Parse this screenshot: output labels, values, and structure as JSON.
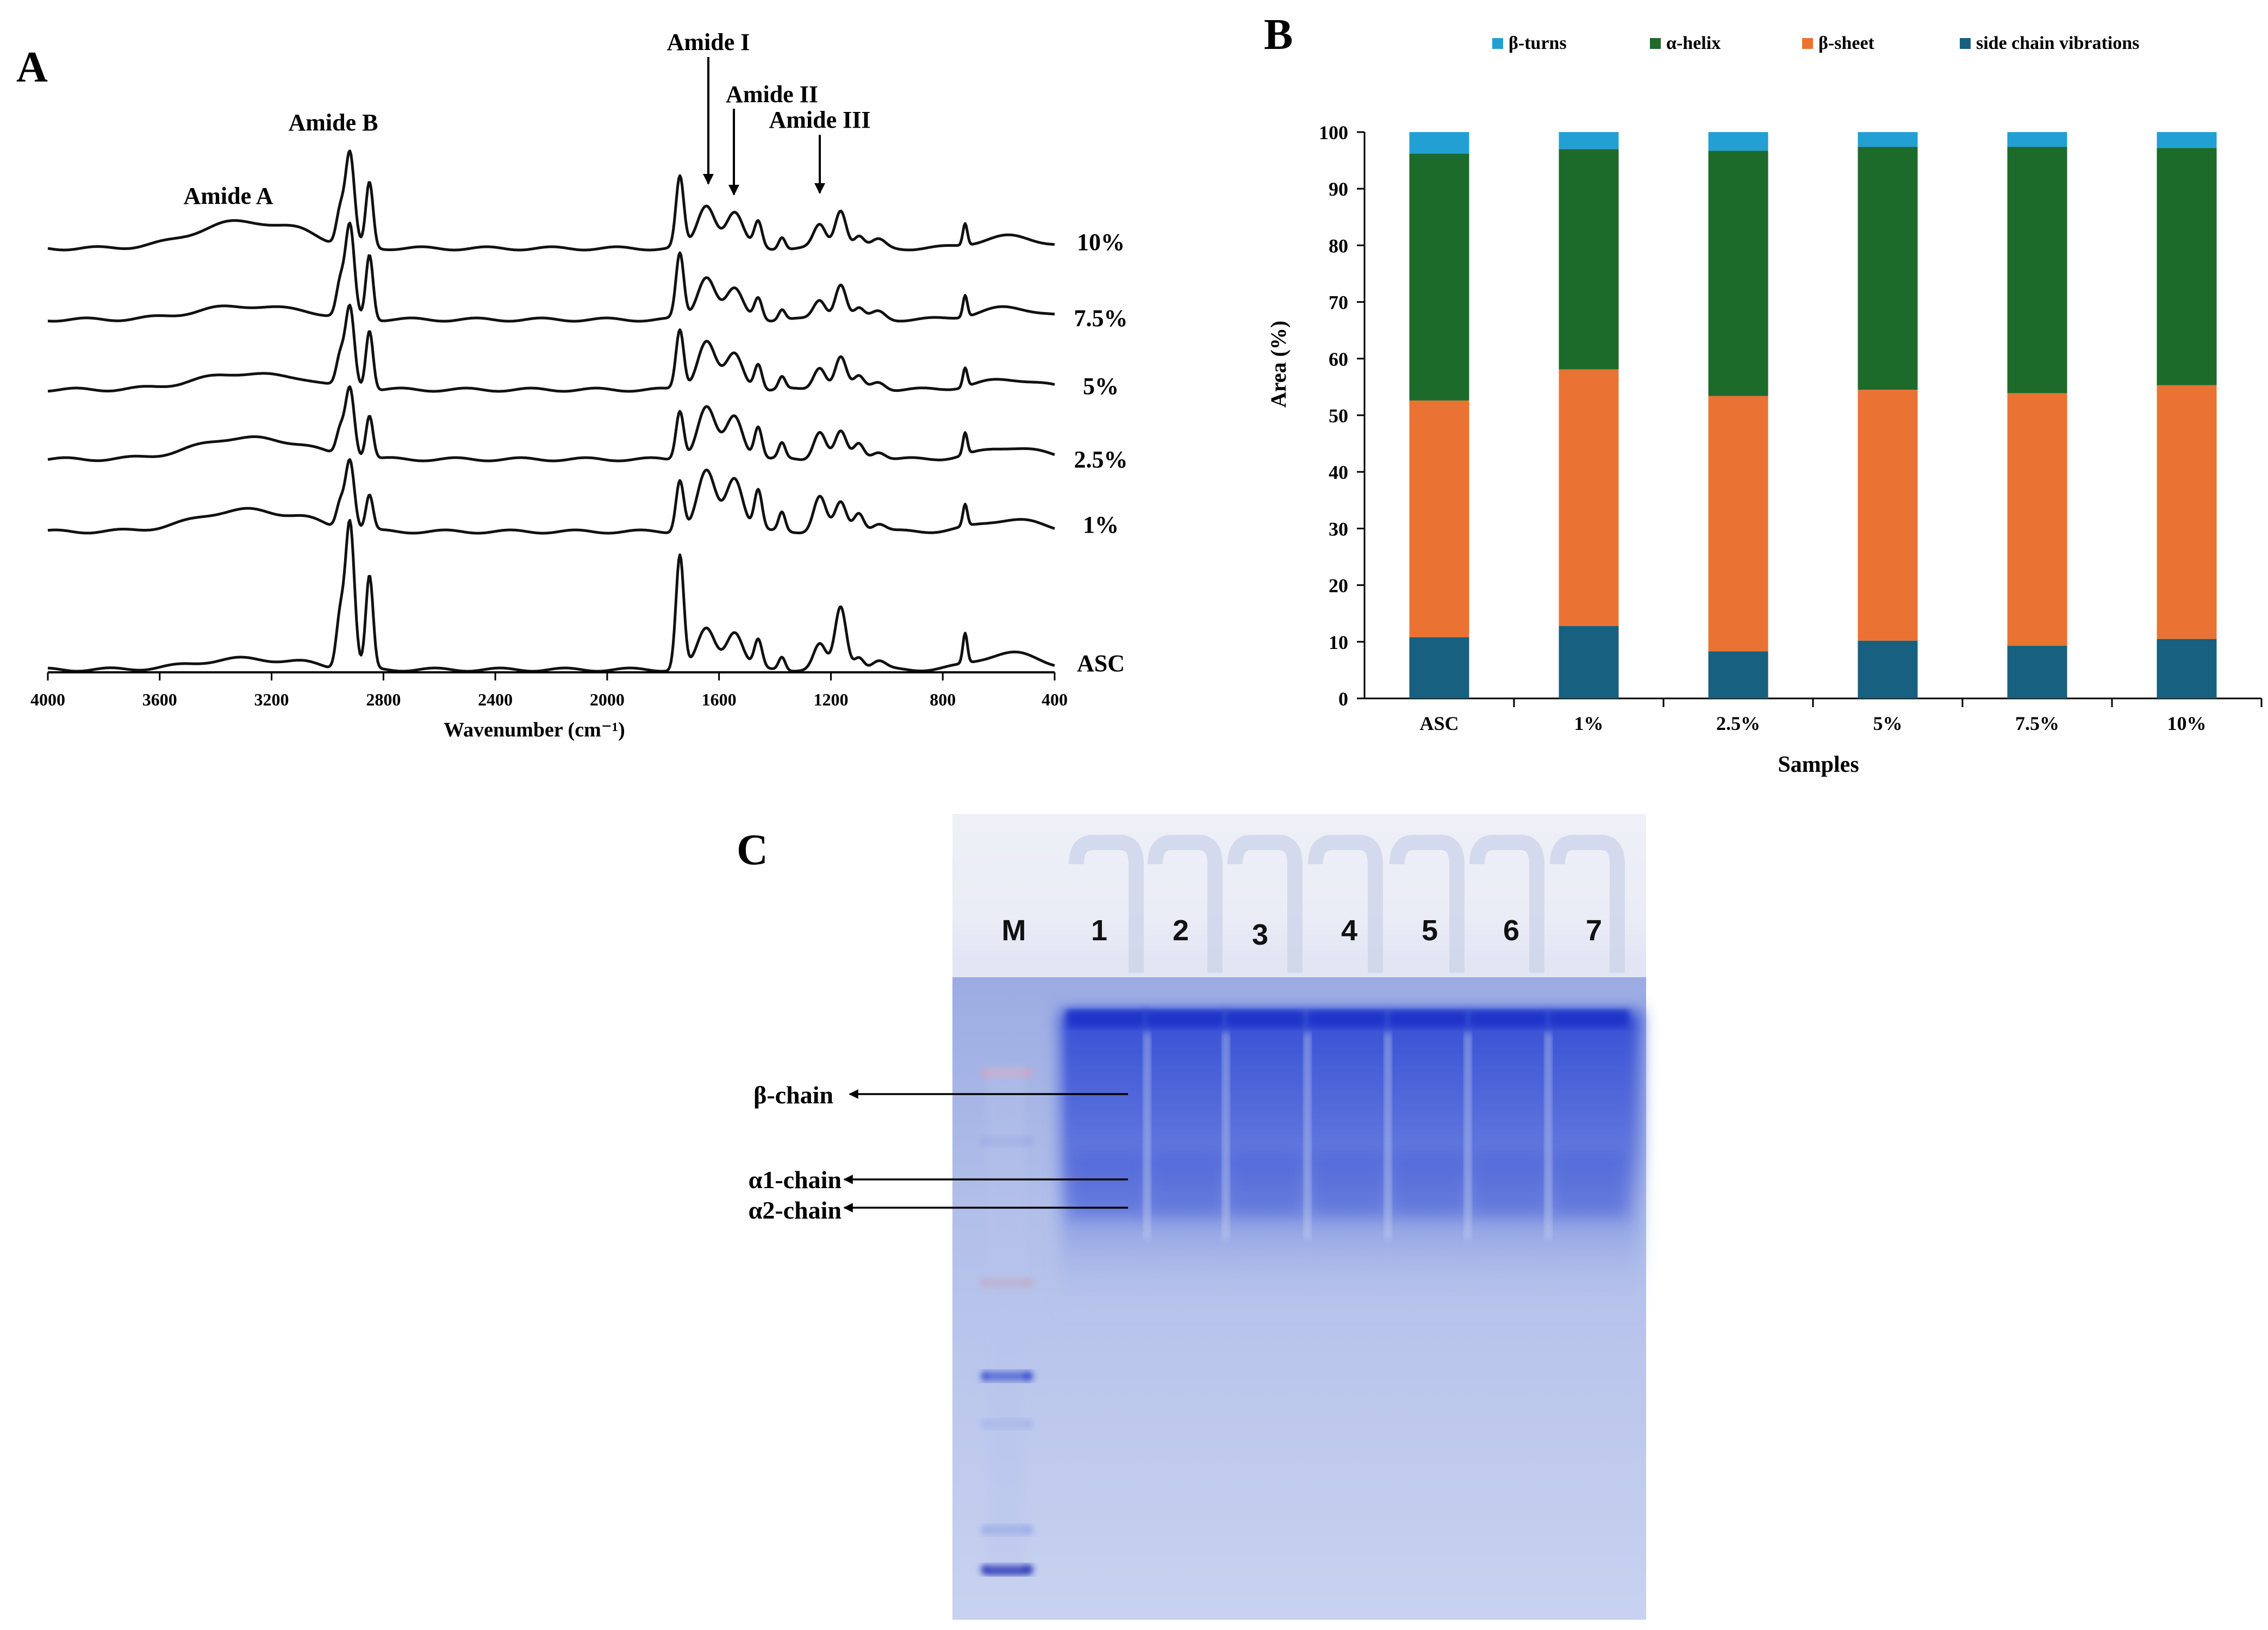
{
  "panels": {
    "a": {
      "label": "A",
      "x_axis_title": "Wavenumber (cm⁻¹)",
      "x_ticks": [
        4000,
        3600,
        3200,
        2800,
        2400,
        2000,
        1600,
        1200,
        800,
        400
      ],
      "peak_labels": {
        "amide_a": "Amide A",
        "amide_b": "Amide B",
        "amide_i": "Amide I",
        "amide_ii": "Amide II",
        "amide_iii": "Amide III"
      },
      "spectra": [
        "10%",
        "7.5%",
        "5%",
        "2.5%",
        "1%",
        "ASC"
      ]
    },
    "b": {
      "label": "B"
    },
    "c": {
      "label": "C",
      "lane_labels": [
        "M",
        "1",
        "2",
        "3",
        "4",
        "5",
        "6",
        "7"
      ],
      "band_labels": {
        "beta": "β-chain",
        "alpha1": "α1-chain",
        "alpha2": "α2-chain"
      }
    }
  },
  "chart_data": [
    {
      "type": "line",
      "title": "",
      "xlabel": "Wavenumber (cm⁻¹)",
      "ylabel": "",
      "xlim": [
        4000,
        400
      ],
      "x_reversed": true,
      "series": [
        {
          "name": "10%",
          "peaks_cm1": [
            3300,
            2920,
            2850,
            1740,
            1640,
            1545,
            1460,
            1240,
            1165,
            720
          ]
        },
        {
          "name": "7.5%",
          "peaks_cm1": [
            3300,
            2920,
            2850,
            1740,
            1640,
            1545,
            1460,
            1240,
            1165,
            720
          ]
        },
        {
          "name": "5%",
          "peaks_cm1": [
            3300,
            2920,
            2850,
            1740,
            1640,
            1545,
            1460,
            1240,
            1165,
            720
          ]
        },
        {
          "name": "2.5%",
          "peaks_cm1": [
            3300,
            2920,
            2850,
            1740,
            1640,
            1545,
            1460,
            1240,
            1165,
            720
          ]
        },
        {
          "name": "1%",
          "peaks_cm1": [
            3300,
            2920,
            2850,
            1740,
            1640,
            1545,
            1460,
            1240,
            1165,
            720
          ]
        },
        {
          "name": "ASC",
          "peaks_cm1": [
            3300,
            2920,
            2850,
            1740,
            1640,
            1545,
            1460,
            1240,
            1165,
            720
          ]
        }
      ]
    },
    {
      "type": "bar",
      "stacked": true,
      "title": "",
      "xlabel": "Samples",
      "ylabel": "Area (%)",
      "ylim": [
        0,
        100
      ],
      "yticks": [
        0,
        10,
        20,
        30,
        40,
        50,
        60,
        70,
        80,
        90,
        100
      ],
      "legend_position": "top",
      "categories": [
        "ASC",
        "1%",
        "2.5%",
        "5%",
        "7.5%",
        "10%"
      ],
      "series": [
        {
          "name": "side chain vibrations",
          "color": "#17607f",
          "values": [
            10.8,
            12.8,
            8.3,
            10.2,
            9.3,
            10.5
          ]
        },
        {
          "name": "β-sheet",
          "color": "#ea7333",
          "values": [
            41.8,
            45.3,
            45.1,
            44.3,
            44.6,
            44.8
          ]
        },
        {
          "name": "α-helix",
          "color": "#1d6b2a",
          "values": [
            43.6,
            38.9,
            43.3,
            42.9,
            43.5,
            41.9
          ]
        },
        {
          "name": "β-turns",
          "color": "#22a0d3",
          "values": [
            3.8,
            3.0,
            3.3,
            2.6,
            2.6,
            2.8
          ]
        }
      ],
      "legend_order": [
        "β-turns",
        "α-helix",
        "β-sheet",
        "side chain vibrations"
      ]
    }
  ]
}
